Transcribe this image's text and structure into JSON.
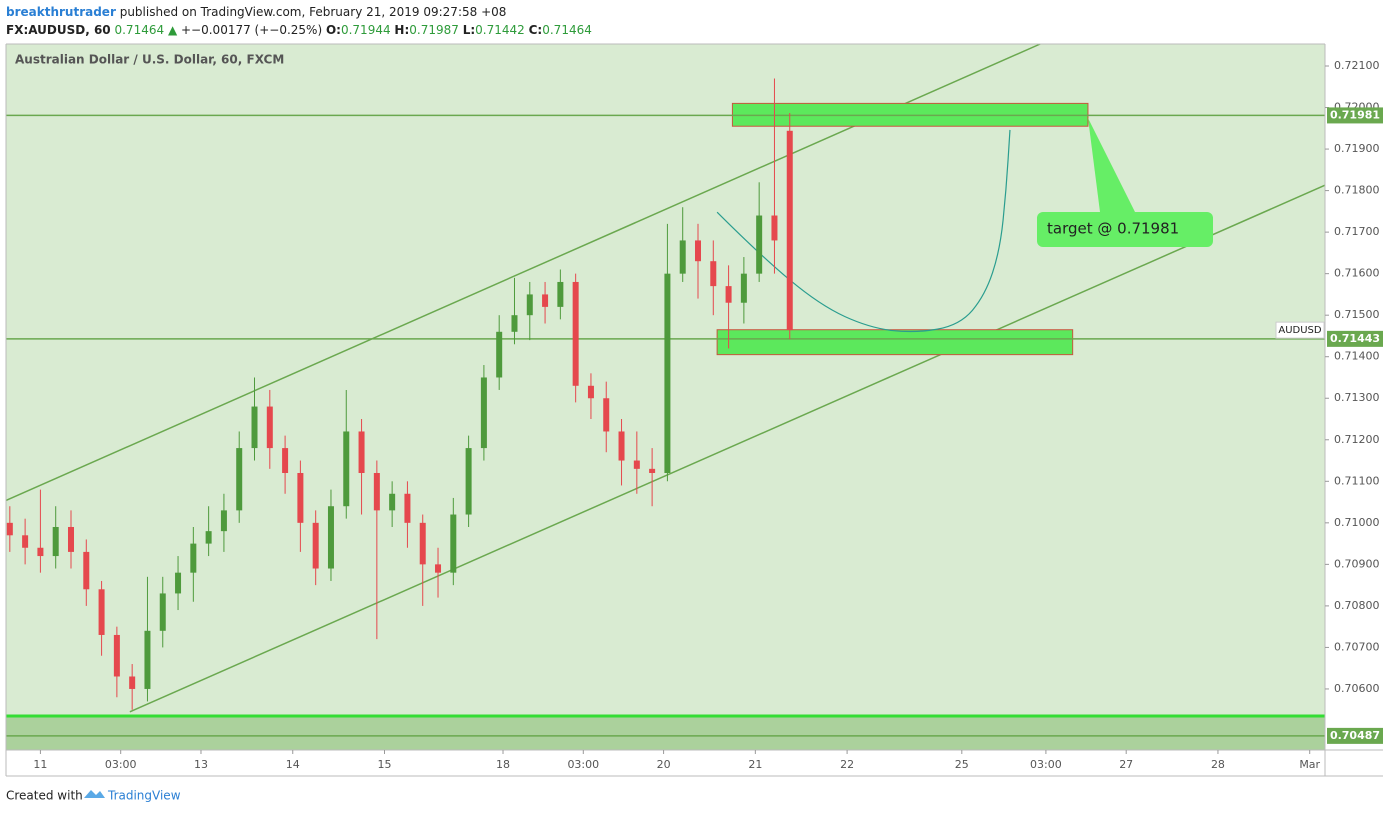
{
  "header": {
    "author": "breakthrutrader",
    "published": "published on TradingView.com, February 21, 2019 09:27:58 +08",
    "symbol": "FX:AUDUSD, 60",
    "last": "0.71464",
    "arrow": "▲",
    "change": "+−0.00177 (+−0.25%)",
    "o_label": "O:",
    "o": "0.71944",
    "h_label": "H:",
    "h": "0.71987",
    "l_label": "L:",
    "l": "0.71442",
    "c_label": "C:",
    "c": "0.71464"
  },
  "footer": {
    "created": "Created with",
    "brand": "TradingView"
  },
  "chart_data": {
    "type": "candlestick",
    "title": "Australian Dollar / U.S. Dollar, 60, FXCM",
    "symbol_label": "AUDUSD",
    "up_color": "#4e9a3c",
    "down_color": "#e5484d",
    "background": "#d9ebd2",
    "x": [
      1,
      5,
      9,
      13,
      17,
      21,
      25,
      29,
      33,
      37,
      41,
      45,
      49,
      53,
      57,
      61,
      65,
      69,
      73,
      77,
      81,
      85,
      89,
      93,
      97,
      101,
      105,
      109,
      113,
      117,
      121,
      125,
      129,
      133,
      137,
      141,
      145,
      149,
      153,
      157,
      161,
      165,
      169,
      173,
      177,
      181,
      185,
      189,
      193,
      197,
      201,
      205
    ],
    "open": [
      0.71,
      0.7097,
      0.7094,
      0.7092,
      0.7099,
      0.7093,
      0.7084,
      0.7073,
      0.7063,
      0.706,
      0.7074,
      0.7083,
      0.7088,
      0.7095,
      0.7098,
      0.7103,
      0.7118,
      0.7128,
      0.7118,
      0.7112,
      0.71,
      0.7089,
      0.7104,
      0.7122,
      0.7112,
      0.7103,
      0.7107,
      0.71,
      0.709,
      0.7088,
      0.7102,
      0.7118,
      0.7135,
      0.7146,
      0.715,
      0.7155,
      0.7152,
      0.7158,
      0.7133,
      0.713,
      0.7122,
      0.7115,
      0.7113,
      0.7112,
      0.716,
      0.7168,
      0.7163,
      0.7157,
      0.7153,
      0.716,
      0.7174,
      0.71944
    ],
    "high": [
      0.7104,
      0.7101,
      0.7108,
      0.7104,
      0.7103,
      0.7096,
      0.7086,
      0.7075,
      0.7066,
      0.7087,
      0.7087,
      0.7092,
      0.7099,
      0.7104,
      0.7107,
      0.7122,
      0.7135,
      0.7132,
      0.7121,
      0.7115,
      0.7103,
      0.7108,
      0.7132,
      0.7125,
      0.7115,
      0.711,
      0.711,
      0.7102,
      0.7094,
      0.7106,
      0.7121,
      0.7138,
      0.715,
      0.7159,
      0.7158,
      0.7158,
      0.7161,
      0.716,
      0.7136,
      0.7134,
      0.7125,
      0.7122,
      0.7118,
      0.7172,
      0.7176,
      0.7172,
      0.7168,
      0.7162,
      0.7164,
      0.7182,
      0.7207,
      0.71987
    ],
    "low": [
      0.7093,
      0.709,
      0.7088,
      0.7089,
      0.7089,
      0.708,
      0.7068,
      0.7058,
      0.7055,
      0.7057,
      0.707,
      0.7079,
      0.7081,
      0.7092,
      0.7093,
      0.71,
      0.7115,
      0.7113,
      0.7107,
      0.7093,
      0.7085,
      0.7086,
      0.7101,
      0.7102,
      0.7072,
      0.7099,
      0.7094,
      0.708,
      0.7082,
      0.7085,
      0.7099,
      0.7115,
      0.7132,
      0.7143,
      0.7144,
      0.7148,
      0.7149,
      0.7129,
      0.7125,
      0.7117,
      0.7109,
      0.7107,
      0.7104,
      0.711,
      0.7158,
      0.7154,
      0.715,
      0.7142,
      0.7148,
      0.7158,
      0.716,
      0.71442
    ],
    "close": [
      0.7097,
      0.7094,
      0.7092,
      0.7099,
      0.7093,
      0.7084,
      0.7073,
      0.7063,
      0.706,
      0.7074,
      0.7083,
      0.7088,
      0.7095,
      0.7098,
      0.7103,
      0.7118,
      0.7128,
      0.7118,
      0.7112,
      0.71,
      0.7089,
      0.7104,
      0.7122,
      0.7112,
      0.7103,
      0.7107,
      0.71,
      0.709,
      0.7088,
      0.7102,
      0.7118,
      0.7135,
      0.7146,
      0.715,
      0.7155,
      0.7152,
      0.7158,
      0.7133,
      0.713,
      0.7122,
      0.7115,
      0.7113,
      0.7112,
      0.716,
      0.7168,
      0.7163,
      0.7157,
      0.7153,
      0.716,
      0.7174,
      0.7168,
      0.71464
    ],
    "xlim": [
      0,
      345
    ],
    "xticks": [
      {
        "value": 9,
        "label": "11"
      },
      {
        "value": 30,
        "label": "03:00"
      },
      {
        "value": 51,
        "label": "13"
      },
      {
        "value": 75,
        "label": "14"
      },
      {
        "value": 99,
        "label": "15"
      },
      {
        "value": 130,
        "label": "18"
      },
      {
        "value": 151,
        "label": "03:00"
      },
      {
        "value": 172,
        "label": "20"
      },
      {
        "value": 196,
        "label": "21"
      },
      {
        "value": 220,
        "label": "22"
      },
      {
        "value": 250,
        "label": "25"
      },
      {
        "value": 272,
        "label": "03:00"
      },
      {
        "value": 293,
        "label": "27"
      },
      {
        "value": 317,
        "label": "28"
      },
      {
        "value": 341,
        "label": "Mar"
      }
    ],
    "ylim": [
      0.70453,
      0.72153
    ],
    "yticks": [
      {
        "value": 0.706,
        "label": "0.70600"
      },
      {
        "value": 0.707,
        "label": "0.70700"
      },
      {
        "value": 0.708,
        "label": "0.70800"
      },
      {
        "value": 0.709,
        "label": "0.70900"
      },
      {
        "value": 0.71,
        "label": "0.71000"
      },
      {
        "value": 0.711,
        "label": "0.71100"
      },
      {
        "value": 0.712,
        "label": "0.71200"
      },
      {
        "value": 0.713,
        "label": "0.71300"
      },
      {
        "value": 0.714,
        "label": "0.71400"
      },
      {
        "value": 0.715,
        "label": "0.71500"
      },
      {
        "value": 0.716,
        "label": "0.71600"
      },
      {
        "value": 0.717,
        "label": "0.71700"
      },
      {
        "value": 0.718,
        "label": "0.71800"
      },
      {
        "value": 0.719,
        "label": "0.71900"
      },
      {
        "value": 0.72,
        "label": "0.72000"
      },
      {
        "value": 0.721,
        "label": "0.72100"
      }
    ],
    "levels": [
      0.71981,
      0.71443,
      0.70487
    ],
    "level_color": "#6aa84f",
    "band_top": 0.70535,
    "zones": [
      {
        "x": [
          190,
          283
        ],
        "y": [
          0.71955,
          0.7201
        ]
      },
      {
        "x": [
          186,
          279
        ],
        "y": [
          0.71405,
          0.71465
        ]
      }
    ],
    "zone_color": "#5ce85c",
    "channel": [
      {
        "x": [
          0,
          270.5
        ],
        "y": [
          0.71054,
          0.72153
        ]
      },
      {
        "x": [
          32.4,
          345
        ],
        "y": [
          0.70545,
          0.71813
        ]
      }
    ],
    "curve": {
      "x": [
        186,
        197.2,
        212.9,
        226,
        237.8,
        249.5,
        256.1,
        260,
        261.6,
        262.6
      ],
      "y": [
        0.71748,
        0.71645,
        0.71524,
        0.71469,
        0.71457,
        0.71476,
        0.71548,
        0.71657,
        0.71801,
        0.71946
      ]
    },
    "curve_color": "#2a9d8f",
    "annotation": "target @ 0.71981"
  }
}
